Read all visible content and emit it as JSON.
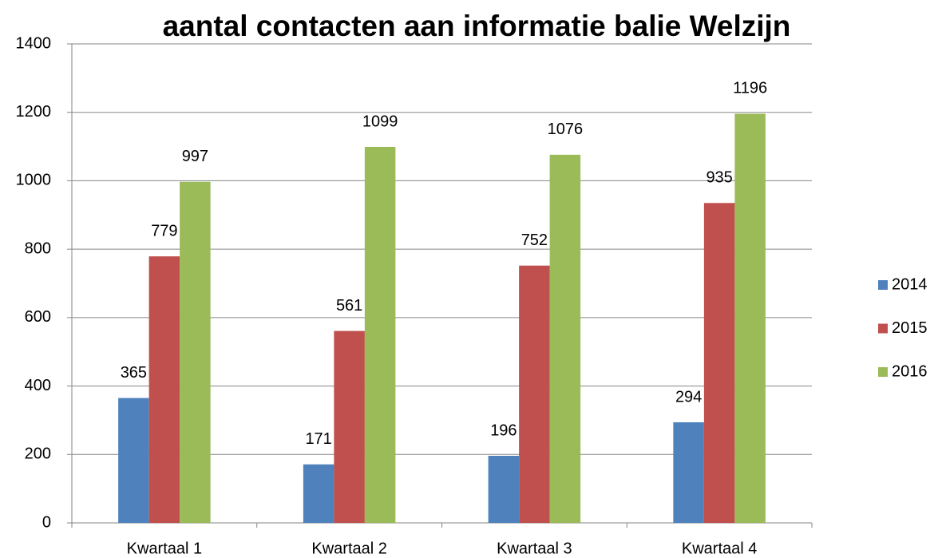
{
  "chart_data": {
    "type": "bar",
    "title": "aantal contacten aan informatie balie Welzijn",
    "categories": [
      "Kwartaal 1",
      "Kwartaal 2",
      "Kwartaal 3",
      "Kwartaal 4"
    ],
    "series": [
      {
        "name": "2014",
        "color": "#4f81bd",
        "values": [
          365,
          171,
          196,
          294
        ]
      },
      {
        "name": "2015",
        "color": "#c0504d",
        "values": [
          779,
          561,
          752,
          935
        ]
      },
      {
        "name": "2016",
        "color": "#9bbb59",
        "values": [
          997,
          1099,
          1076,
          1196
        ]
      }
    ],
    "ylim": [
      0,
      1400
    ],
    "yticks": [
      0,
      200,
      400,
      600,
      800,
      1000,
      1200,
      1400
    ],
    "grid": true,
    "legend": "right"
  }
}
